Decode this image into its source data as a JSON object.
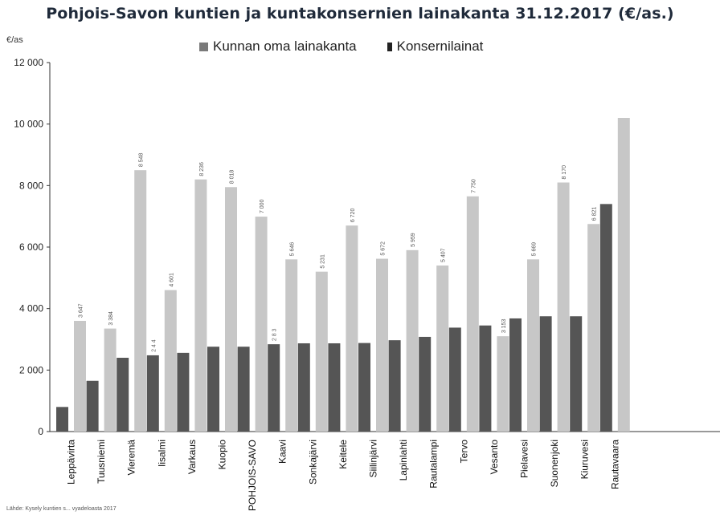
{
  "chart_data": {
    "type": "bar",
    "title": "Pohjois-Savon kuntien ja kuntakonsernien lainakanta 31.12.2017 (€/as.)",
    "ylabel": "€/as",
    "source": "Lähde: Kysely kuntien s... vyadeloasta 2017",
    "ylim": [
      0,
      12000
    ],
    "yticks": [
      "0",
      "2 000",
      "4 000",
      "6 000",
      "8 000",
      "10 000",
      "12 000"
    ],
    "ytick_values": [
      0,
      2000,
      4000,
      6000,
      8000,
      10000,
      12000
    ],
    "grid": false,
    "legend_position": "top",
    "categories": [
      "Leppävirta",
      "Tuusniemi",
      "Vieremä",
      "Iisalmi",
      "Varkaus",
      "Kuopio",
      "POHJOIS-SAVO",
      "Kaavi",
      "Sonkajärvi",
      "Keitele",
      "Siilinjärvi",
      "Lapinlahti",
      "Rautalampi",
      "Tervo",
      "Vesanto",
      "Pielavesi",
      "Suonenjoki",
      "Kiuruvesi",
      "Rautavaara"
    ],
    "series": [
      {
        "name": "Kunnan oma lainakanta",
        "color": "#555555",
        "values": [
          800,
          1650,
          2400,
          2480,
          2560,
          2760,
          2760,
          2840,
          2870,
          2870,
          2880,
          2970,
          3080,
          3380,
          3450,
          3680,
          3750,
          3750,
          7400
        ]
      },
      {
        "name": "Konsernilainat",
        "color": "#c7c7c7",
        "values": [
          3600,
          3350,
          8500,
          4600,
          8200,
          7950,
          6990,
          5600,
          5200,
          6700,
          5620,
          5900,
          5400,
          7650,
          3100,
          5600,
          8100,
          6750,
          10200
        ]
      }
    ],
    "data_labels": [
      [
        "",
        "3 647"
      ],
      [
        "",
        "3 384"
      ],
      [
        "",
        "8 548"
      ],
      [
        "2 4 4",
        "4 601"
      ],
      [
        "",
        "8 236"
      ],
      [
        "",
        "8 018"
      ],
      [
        "",
        "7 000"
      ],
      [
        "2 8 3",
        "5 646"
      ],
      [
        "",
        "5 231"
      ],
      [
        "",
        "6 720"
      ],
      [
        "",
        "5 672"
      ],
      [
        "",
        "5 959"
      ],
      [
        "",
        "5 407"
      ],
      [
        "",
        "7 750"
      ],
      [
        "",
        "3 153"
      ],
      [
        "",
        "5 669"
      ],
      [
        "",
        "8 170"
      ],
      [
        "",
        "6 821"
      ],
      [
        "",
        ""
      ]
    ]
  }
}
